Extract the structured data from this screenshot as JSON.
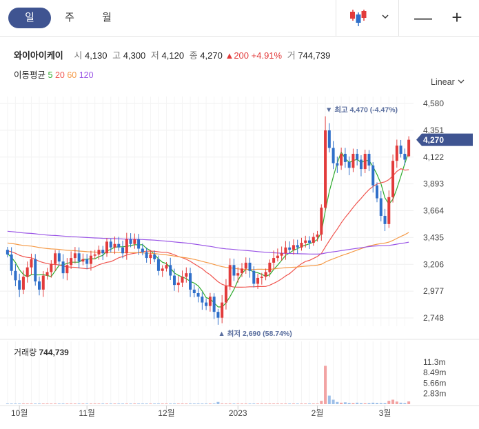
{
  "toolbar": {
    "tabs": [
      {
        "label": "일",
        "active": true
      },
      {
        "label": "주",
        "active": false
      },
      {
        "label": "월",
        "active": false
      }
    ],
    "chart_type_icon": "candlestick-icon",
    "zoom_out": "—",
    "zoom_in": "+"
  },
  "info": {
    "name": "와이아이케이",
    "open_label": "시",
    "open": "4,130",
    "high_label": "고",
    "high": "4,300",
    "low_label": "저",
    "low": "4,120",
    "close_label": "종",
    "close": "4,270",
    "change": "▲200",
    "change_pct": "+4.91%",
    "volume_label": "거",
    "volume": "744,739"
  },
  "ma_legend": {
    "label": "이동평균",
    "periods": [
      {
        "label": "5",
        "color": "#2eab2e"
      },
      {
        "label": "20",
        "color": "#f0554f"
      },
      {
        "label": "60",
        "color": "#f59a47"
      },
      {
        "label": "120",
        "color": "#9a55e6"
      }
    ]
  },
  "scale_mode": "Linear",
  "colors": {
    "up": "#e23b3b",
    "down": "#2f6fc9",
    "accent": "#3f5491",
    "ma_label": "#5a6e9e"
  },
  "chart_data": {
    "type": "candlestick",
    "yticks": [
      "4,580",
      "4,351",
      "4,122",
      "3,893",
      "3,664",
      "3,435",
      "3,206",
      "2,977",
      "2,748"
    ],
    "ylim": [
      2690,
      4640
    ],
    "xticks": [
      "10월",
      "11월",
      "12월",
      "2023",
      "2월",
      "3월"
    ],
    "current_price": "4,270",
    "high_annotation": "▼ 최고 4,470 (-4.47%)",
    "low_annotation": "▲ 최저 2,690 (58.74%)",
    "volume_label": "거래량",
    "volume_value": "744,739",
    "volume_ticks": [
      "11.3m",
      "8.49m",
      "5.66m",
      "2.83m"
    ],
    "volume_max": 11300000,
    "closes": [
      3290,
      3150,
      3070,
      2990,
      3100,
      3180,
      3250,
      3060,
      2990,
      3110,
      3140,
      3210,
      3300,
      3230,
      3130,
      3200,
      3260,
      3300,
      3230,
      3250,
      3210,
      3280,
      3290,
      3330,
      3300,
      3400,
      3350,
      3380,
      3350,
      3300,
      3420,
      3380,
      3420,
      3340,
      3310,
      3260,
      3290,
      3250,
      3150,
      3170,
      3200,
      3110,
      3030,
      3050,
      3100,
      3130,
      2990,
      2960,
      2930,
      2880,
      2850,
      2930,
      2800,
      2750,
      2880,
      3020,
      3200,
      3110,
      3130,
      3170,
      3220,
      3150,
      3040,
      3090,
      3100,
      3140,
      3220,
      3260,
      3280,
      3300,
      3350,
      3330,
      3370,
      3350,
      3390,
      3410,
      3390,
      3440,
      3460,
      3690,
      4350,
      4200,
      4070,
      4050,
      4150,
      4080,
      4030,
      4150,
      4100,
      4020,
      4150,
      4050,
      3880,
      3770,
      3620,
      3550,
      3780,
      4090,
      4220,
      4150,
      4100,
      4270
    ],
    "volumes": [
      0.05,
      0.04,
      0.04,
      0.03,
      0.05,
      0.04,
      0.04,
      0.06,
      0.05,
      0.04,
      0.05,
      0.04,
      0.04,
      0.06,
      0.05,
      0.04,
      0.04,
      0.05,
      0.04,
      0.03,
      0.05,
      0.06,
      0.04,
      0.05,
      0.04,
      0.06,
      0.05,
      0.04,
      0.04,
      0.05,
      0.04,
      0.04,
      0.05,
      0.04,
      0.05,
      0.04,
      0.04,
      0.05,
      0.04,
      0.05,
      0.04,
      0.04,
      0.05,
      0.04,
      0.04,
      0.05,
      0.04,
      0.05,
      0.04,
      0.06,
      0.05,
      0.06,
      0.09,
      0.6,
      0.12,
      0.1,
      0.15,
      0.08,
      0.07,
      0.06,
      0.06,
      0.07,
      0.06,
      0.05,
      0.06,
      0.05,
      0.06,
      0.05,
      0.06,
      0.07,
      0.08,
      0.06,
      0.07,
      0.06,
      0.06,
      0.06,
      0.07,
      0.09,
      0.15,
      0.9,
      10.3,
      2.3,
      1.2,
      0.6,
      0.4,
      0.5,
      0.35,
      0.3,
      0.4,
      0.3,
      0.25,
      0.3,
      0.4,
      0.35,
      0.3,
      0.3,
      0.9,
      1.2,
      0.7,
      0.4,
      0.3,
      0.74
    ]
  }
}
